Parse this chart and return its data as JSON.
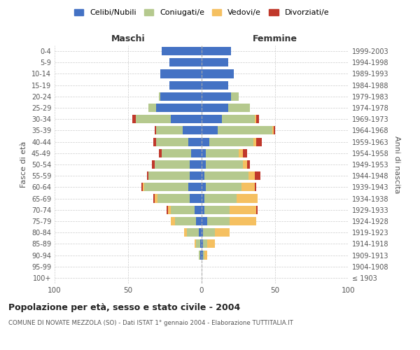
{
  "age_groups": [
    "100+",
    "95-99",
    "90-94",
    "85-89",
    "80-84",
    "75-79",
    "70-74",
    "65-69",
    "60-64",
    "55-59",
    "50-54",
    "45-49",
    "40-44",
    "35-39",
    "30-34",
    "25-29",
    "20-24",
    "15-19",
    "10-14",
    "5-9",
    "0-4"
  ],
  "birth_years": [
    "≤ 1903",
    "1904-1908",
    "1909-1913",
    "1914-1918",
    "1919-1923",
    "1924-1928",
    "1929-1933",
    "1934-1938",
    "1939-1943",
    "1944-1948",
    "1949-1953",
    "1954-1958",
    "1959-1963",
    "1964-1968",
    "1969-1973",
    "1974-1978",
    "1979-1983",
    "1984-1988",
    "1989-1993",
    "1994-1998",
    "1999-2003"
  ],
  "colors": {
    "celibi": "#4472C4",
    "coniugati": "#B5C98E",
    "vedovi": "#F5C061",
    "divorziati": "#C0382B"
  },
  "maschi": {
    "celibi": [
      0,
      0,
      1,
      1,
      2,
      4,
      5,
      8,
      9,
      8,
      8,
      7,
      9,
      13,
      21,
      31,
      28,
      22,
      28,
      22,
      27
    ],
    "coniugati": [
      0,
      0,
      1,
      3,
      8,
      14,
      16,
      22,
      30,
      28,
      24,
      20,
      22,
      18,
      24,
      5,
      1,
      0,
      0,
      0,
      0
    ],
    "vedovi": [
      0,
      0,
      0,
      1,
      2,
      3,
      2,
      2,
      1,
      0,
      0,
      0,
      0,
      0,
      0,
      0,
      0,
      0,
      0,
      0,
      0
    ],
    "divorziati": [
      0,
      0,
      0,
      0,
      0,
      0,
      1,
      1,
      1,
      1,
      2,
      2,
      2,
      1,
      2,
      0,
      0,
      0,
      0,
      0,
      0
    ]
  },
  "femmine": {
    "celibi": [
      0,
      0,
      1,
      1,
      1,
      4,
      2,
      2,
      3,
      2,
      3,
      3,
      5,
      11,
      14,
      18,
      20,
      18,
      22,
      18,
      20
    ],
    "coniugati": [
      0,
      0,
      1,
      3,
      8,
      15,
      17,
      22,
      24,
      30,
      25,
      22,
      30,
      37,
      22,
      15,
      5,
      0,
      0,
      0,
      0
    ],
    "vedovi": [
      0,
      0,
      2,
      5,
      10,
      18,
      18,
      14,
      9,
      4,
      3,
      3,
      2,
      1,
      1,
      0,
      0,
      0,
      0,
      0,
      0
    ],
    "divorziati": [
      0,
      0,
      0,
      0,
      0,
      0,
      1,
      0,
      1,
      4,
      2,
      3,
      4,
      1,
      2,
      0,
      0,
      0,
      0,
      0,
      0
    ]
  },
  "xlim": 100,
  "xticks": [
    -100,
    -50,
    0,
    50,
    100
  ],
  "xticklabels": [
    "100",
    "50",
    "0",
    "50",
    "100"
  ],
  "title": "Popolazione per età, sesso e stato civile - 2004",
  "subtitle": "COMUNE DI NOVATE MEZZOLA (SO) - Dati ISTAT 1° gennaio 2004 - Elaborazione TUTTITALIA.IT",
  "ylabel_left": "Fasce di età",
  "ylabel_right": "Anni di nascita",
  "label_maschi": "Maschi",
  "label_femmine": "Femmine",
  "legend_labels": [
    "Celibi/Nubili",
    "Coniugati/e",
    "Vedovi/e",
    "Divorziati/e"
  ],
  "background_color": "#ffffff",
  "bar_height": 0.75
}
